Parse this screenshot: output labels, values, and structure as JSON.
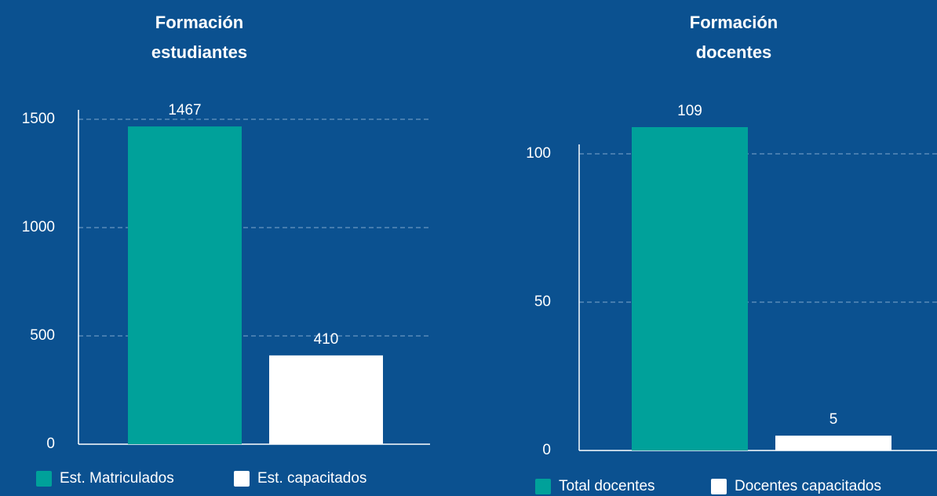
{
  "chart_data": [
    {
      "type": "bar",
      "title": "Formación estudiantes",
      "categories": [
        "Est. Matriculados",
        "Est. capacitados"
      ],
      "values": [
        1467,
        410
      ],
      "colors": [
        "#00a19a",
        "#ffffff"
      ],
      "ylim": [
        0,
        1500
      ],
      "yticks": [
        0,
        500,
        1000,
        1500
      ],
      "grid": true,
      "legend": "bottom"
    },
    {
      "type": "bar",
      "title": "Formación docentes",
      "categories": [
        "Total docentes",
        "Docentes capacitados"
      ],
      "values": [
        109,
        5
      ],
      "colors": [
        "#00a19a",
        "#ffffff"
      ],
      "ylim": [
        0,
        100
      ],
      "yticks": [
        0,
        50,
        100
      ],
      "grid": true,
      "legend": "bottom"
    }
  ]
}
